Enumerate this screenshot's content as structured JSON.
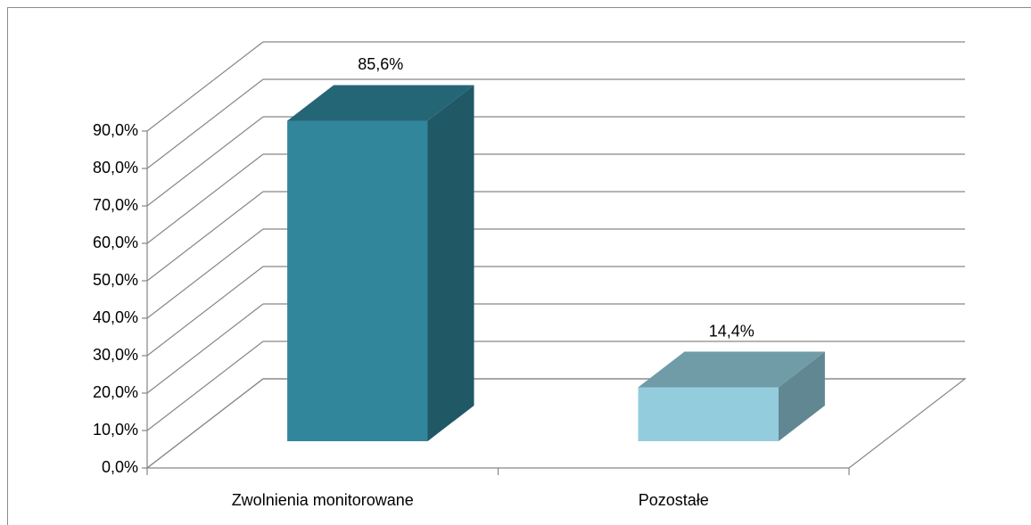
{
  "chart_data": {
    "type": "bar3d",
    "categories": [
      "Zwolnienia monitorowane",
      "Pozostałe"
    ],
    "values": [
      85.6,
      14.4
    ],
    "value_labels": [
      "85,6%",
      "14,4%"
    ],
    "colors": [
      "#31869b",
      "#93cddd"
    ],
    "ylim": [
      0,
      90
    ],
    "yticks": [
      {
        "value": 0,
        "label": "0,0%"
      },
      {
        "value": 10,
        "label": "10,0%"
      },
      {
        "value": 20,
        "label": "20,0%"
      },
      {
        "value": 30,
        "label": "30,0%"
      },
      {
        "value": 40,
        "label": "40,0%"
      },
      {
        "value": 50,
        "label": "50,0%"
      },
      {
        "value": 60,
        "label": "60,0%"
      },
      {
        "value": 70,
        "label": "70,0%"
      },
      {
        "value": 80,
        "label": "80,0%"
      },
      {
        "value": 90,
        "label": "90,0%"
      }
    ],
    "grid": true
  }
}
